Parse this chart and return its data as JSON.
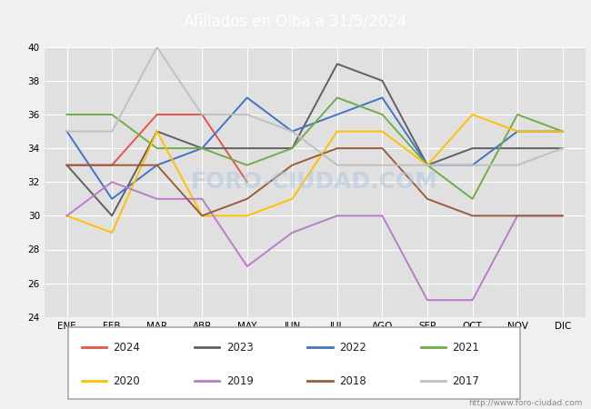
{
  "title": "Afiliados en Olba a 31/5/2024",
  "title_color": "white",
  "title_bg_color": "#4472c4",
  "ylim": [
    24,
    40
  ],
  "yticks": [
    24,
    26,
    28,
    30,
    32,
    34,
    36,
    38,
    40
  ],
  "months": [
    "ENE",
    "FEB",
    "MAR",
    "ABR",
    "MAY",
    "JUN",
    "JUL",
    "AGO",
    "SEP",
    "OCT",
    "NOV",
    "DIC"
  ],
  "watermark": "FORO-CIUDAD.COM",
  "url": "http://www.foro-ciudad.com",
  "series": {
    "2024": {
      "color": "#e8534a",
      "data": [
        33,
        33,
        36,
        36,
        32,
        null,
        null,
        null,
        null,
        null,
        null,
        null
      ]
    },
    "2023": {
      "color": "#606060",
      "data": [
        33,
        30,
        35,
        34,
        34,
        34,
        39,
        38,
        33,
        34,
        34,
        34
      ]
    },
    "2022": {
      "color": "#4472c4",
      "data": [
        35,
        31,
        33,
        34,
        37,
        35,
        36,
        37,
        33,
        33,
        35,
        35
      ]
    },
    "2021": {
      "color": "#70ad47",
      "data": [
        36,
        36,
        34,
        34,
        33,
        34,
        37,
        36,
        33,
        31,
        36,
        35
      ]
    },
    "2020": {
      "color": "#ffc000",
      "data": [
        30,
        29,
        35,
        30,
        30,
        31,
        35,
        35,
        33,
        36,
        35,
        35
      ]
    },
    "2019": {
      "color": "#b97dc8",
      "data": [
        30,
        32,
        31,
        31,
        27,
        29,
        30,
        30,
        25,
        25,
        30,
        30
      ]
    },
    "2018": {
      "color": "#9b5c3a",
      "data": [
        33,
        33,
        33,
        30,
        31,
        33,
        34,
        34,
        31,
        30,
        30,
        30
      ]
    },
    "2017": {
      "color": "#c0c0c0",
      "data": [
        35,
        35,
        40,
        36,
        36,
        35,
        33,
        33,
        33,
        33,
        33,
        34
      ]
    }
  },
  "legend_order": [
    "2024",
    "2023",
    "2022",
    "2021",
    "2020",
    "2019",
    "2018",
    "2017"
  ],
  "bg_color": "#f0f0f0",
  "plot_bg_color": "#e0e0e0",
  "grid_color": "white"
}
